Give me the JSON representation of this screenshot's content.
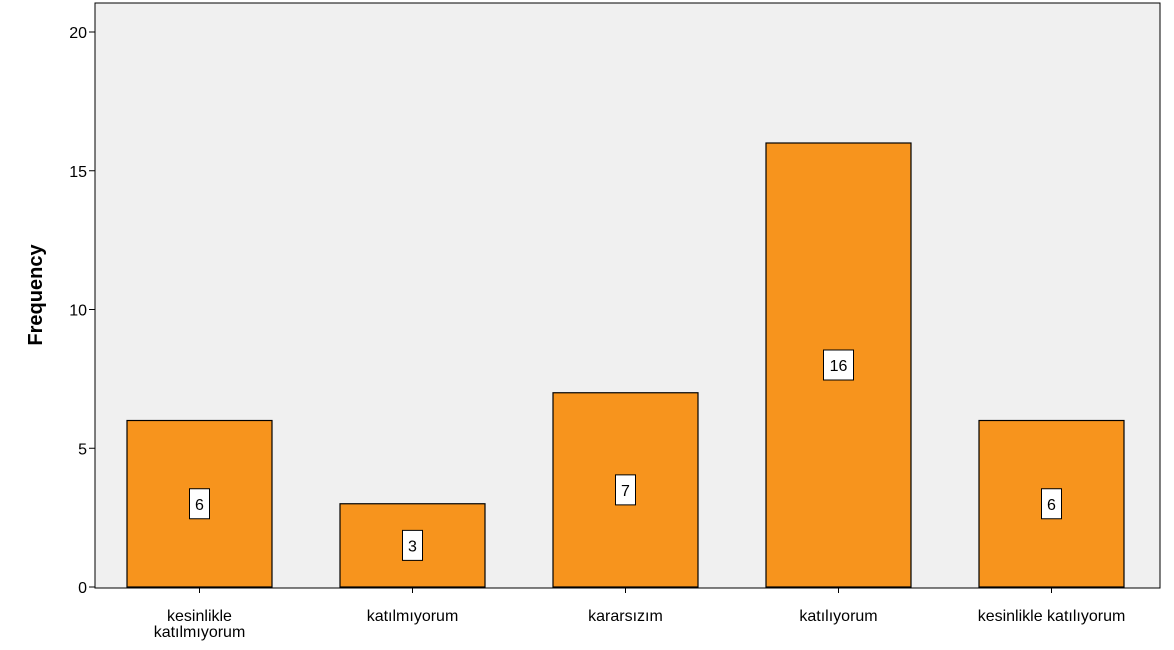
{
  "chart_data": {
    "type": "bar",
    "categories": [
      [
        "kesinlikle",
        "katılmıyorum"
      ],
      [
        "katılmıyorum"
      ],
      [
        "kararsızım"
      ],
      [
        "katılıyorum"
      ],
      [
        "kesinlikle katılıyorum"
      ]
    ],
    "values": [
      6,
      3,
      7,
      16,
      6
    ],
    "data_labels": [
      "6",
      "3",
      "7",
      "16",
      "6"
    ],
    "title": "",
    "xlabel": "",
    "ylabel": "Frequency",
    "ylim": [
      0,
      21
    ],
    "yticks": [
      0,
      5,
      10,
      15,
      20
    ],
    "grid": false,
    "legend": "none",
    "colors": {
      "bar": "#f7941d",
      "bar_stroke": "#000000",
      "plot_bg": "#f0f0f0",
      "axis": "#000000"
    }
  }
}
